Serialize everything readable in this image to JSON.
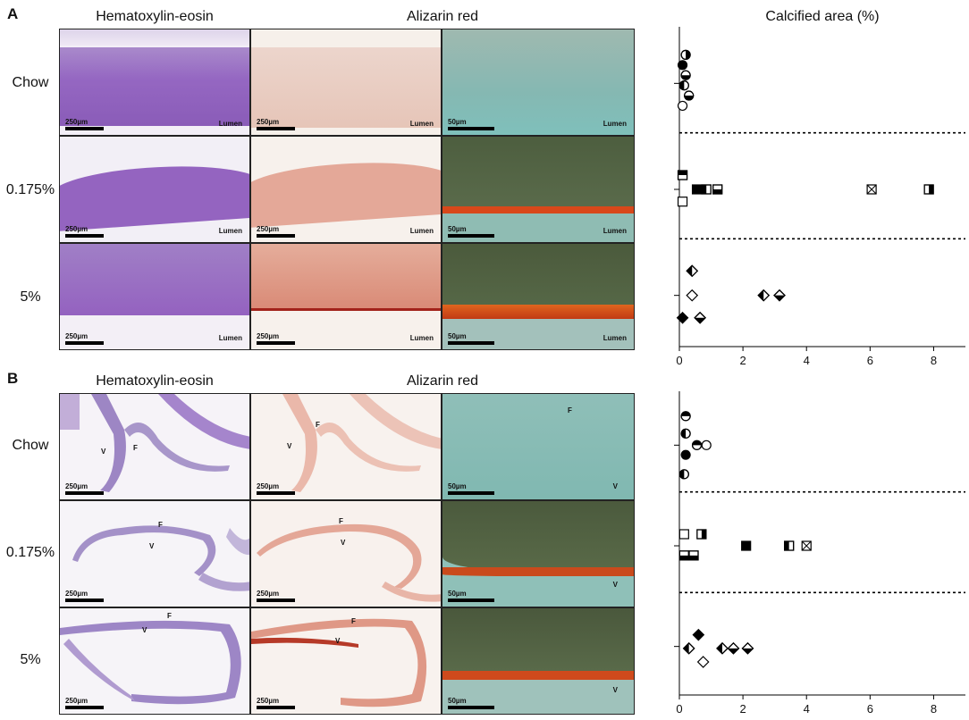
{
  "panels": [
    {
      "letter": "A",
      "col_titles": [
        "Hematoxylin-eosin",
        "Alizarin red"
      ],
      "plot_title": "Calcified area (%)",
      "rows": [
        {
          "label": "Chow",
          "he_scale": "250µm",
          "ar_scale": "250µm",
          "zoom_scale": "50µm",
          "he_lbl": "Lumen",
          "ar_lbl": "Lumen",
          "zoom_lbl": "Lumen"
        },
        {
          "label": "0.175%",
          "he_scale": "250µm",
          "ar_scale": "250µm",
          "zoom_scale": "50µm",
          "he_lbl": "Lumen",
          "ar_lbl": "Lumen",
          "zoom_lbl": "Lumen"
        },
        {
          "label": "5%",
          "he_scale": "250µm",
          "ar_scale": "250µm",
          "zoom_scale": "50µm",
          "he_lbl": "Lumen",
          "ar_lbl": "Lumen",
          "zoom_lbl": "Lumen"
        }
      ]
    },
    {
      "letter": "B",
      "col_titles": [
        "Hematoxylin-eosin",
        "Alizarin red"
      ],
      "rows": [
        {
          "label": "Chow",
          "he_scale": "250µm",
          "ar_scale": "250µm",
          "zoom_scale": "50µm",
          "f": "F",
          "v": "V"
        },
        {
          "label": "0.175%",
          "he_scale": "250µm",
          "ar_scale": "250µm",
          "zoom_scale": "50µm",
          "f": "F",
          "v": "V"
        },
        {
          "label": "5%",
          "he_scale": "250µm",
          "ar_scale": "250µm",
          "zoom_scale": "50µm",
          "f": "F",
          "v": "V"
        }
      ]
    }
  ],
  "colors": {
    "he_purple": "#9b6fc2",
    "he_bg": "#f1eef6",
    "ar_pink": "#e2a596",
    "ar_bg": "#f6efea",
    "zoom_teal": "#86bcb4",
    "zoom_dark": "#4f5f3e",
    "calcified": "#d8481a"
  },
  "chart_data": [
    {
      "type": "scatter",
      "title": "Calcified area (%)",
      "xlim": [
        0,
        9
      ],
      "xticks": [
        0,
        2,
        4,
        6,
        8
      ],
      "groups": [
        "Chow",
        "0.175%",
        "5%"
      ],
      "points": {
        "Chow": [
          {
            "x": 0.2,
            "y": 0.7,
            "marker": "circle",
            "fill": "half-right"
          },
          {
            "x": 0.1,
            "y": 0.45,
            "marker": "circle",
            "fill": "full"
          },
          {
            "x": 0.2,
            "y": 0.2,
            "marker": "circle",
            "fill": "half-bottom"
          },
          {
            "x": 0.15,
            "y": -0.05,
            "marker": "circle",
            "fill": "half-left"
          },
          {
            "x": 0.3,
            "y": -0.3,
            "marker": "circle",
            "fill": "half-bottom"
          },
          {
            "x": 0.1,
            "y": -0.55,
            "marker": "circle",
            "fill": "empty"
          }
        ],
        "0.175%": [
          {
            "x": 0.1,
            "y": 0.35,
            "marker": "square",
            "fill": "half-top"
          },
          {
            "x": 0.1,
            "y": -0.3,
            "marker": "square",
            "fill": "empty"
          },
          {
            "x": 0.55,
            "y": 0.0,
            "marker": "square",
            "fill": "full"
          },
          {
            "x": 0.85,
            "y": 0.0,
            "marker": "square",
            "fill": "half-left"
          },
          {
            "x": 1.2,
            "y": 0.0,
            "marker": "square",
            "fill": "half-bottom"
          },
          {
            "x": 6.05,
            "y": 0.0,
            "marker": "square",
            "fill": "cross"
          },
          {
            "x": 7.85,
            "y": 0.0,
            "marker": "square",
            "fill": "half-right"
          }
        ],
        "5%": [
          {
            "x": 0.4,
            "y": 0.6,
            "marker": "diamond",
            "fill": "half-left"
          },
          {
            "x": 0.4,
            "y": 0.0,
            "marker": "diamond",
            "fill": "empty"
          },
          {
            "x": 2.65,
            "y": 0.0,
            "marker": "diamond",
            "fill": "half-left"
          },
          {
            "x": 3.15,
            "y": 0.0,
            "marker": "diamond",
            "fill": "half-bottom"
          },
          {
            "x": 0.1,
            "y": -0.55,
            "marker": "diamond",
            "fill": "full"
          },
          {
            "x": 0.65,
            "y": -0.55,
            "marker": "diamond",
            "fill": "half-bottom"
          }
        ]
      }
    },
    {
      "type": "scatter",
      "xlim": [
        0,
        9
      ],
      "xticks": [
        0,
        2,
        4,
        6,
        8
      ],
      "groups": [
        "Chow",
        "0.175%",
        "5%"
      ],
      "points": {
        "Chow": [
          {
            "x": 0.2,
            "y": 0.75,
            "marker": "circle",
            "fill": "half-top"
          },
          {
            "x": 0.2,
            "y": 0.3,
            "marker": "circle",
            "fill": "half-left"
          },
          {
            "x": 0.55,
            "y": 0.0,
            "marker": "circle",
            "fill": "half-top"
          },
          {
            "x": 0.85,
            "y": 0.0,
            "marker": "circle",
            "fill": "empty"
          },
          {
            "x": 0.2,
            "y": -0.25,
            "marker": "circle",
            "fill": "full"
          },
          {
            "x": 0.15,
            "y": -0.75,
            "marker": "circle",
            "fill": "half-left"
          }
        ],
        "0.175%": [
          {
            "x": 0.15,
            "y": 0.3,
            "marker": "square",
            "fill": "empty"
          },
          {
            "x": 0.7,
            "y": 0.3,
            "marker": "square",
            "fill": "half-right"
          },
          {
            "x": 0.15,
            "y": -0.25,
            "marker": "square",
            "fill": "half-bottom"
          },
          {
            "x": 0.45,
            "y": -0.25,
            "marker": "square",
            "fill": "half-bottom"
          },
          {
            "x": 2.1,
            "y": 0.0,
            "marker": "square",
            "fill": "full"
          },
          {
            "x": 3.45,
            "y": 0.0,
            "marker": "square",
            "fill": "half-left"
          },
          {
            "x": 4.0,
            "y": 0.0,
            "marker": "square",
            "fill": "cross"
          }
        ],
        "5%": [
          {
            "x": 0.6,
            "y": 0.3,
            "marker": "diamond",
            "fill": "full"
          },
          {
            "x": 0.3,
            "y": -0.05,
            "marker": "diamond",
            "fill": "half-left"
          },
          {
            "x": 1.35,
            "y": -0.05,
            "marker": "diamond",
            "fill": "half-left"
          },
          {
            "x": 1.7,
            "y": -0.05,
            "marker": "diamond",
            "fill": "half-bottom"
          },
          {
            "x": 2.15,
            "y": -0.05,
            "marker": "diamond",
            "fill": "half-bottom"
          },
          {
            "x": 0.75,
            "y": -0.4,
            "marker": "diamond",
            "fill": "empty"
          }
        ]
      }
    }
  ]
}
